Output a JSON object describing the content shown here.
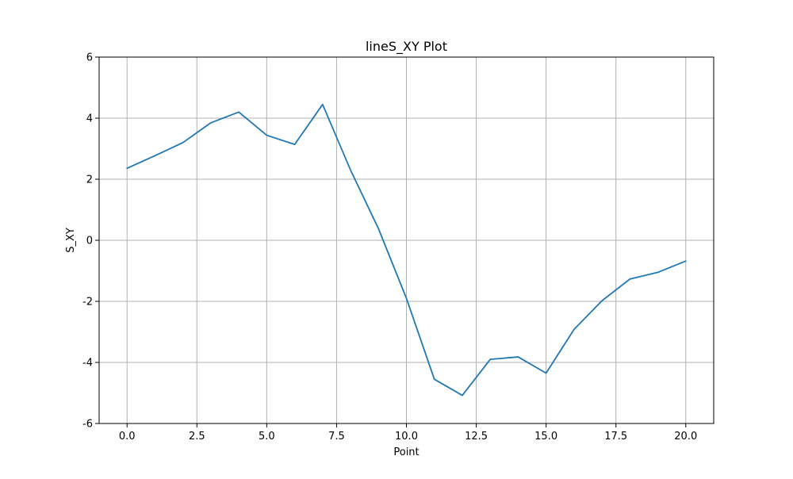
{
  "chart_data": {
    "type": "line",
    "title": "lineS_XY Plot",
    "xlabel": "Point",
    "ylabel": "S_XY",
    "xlim": [
      -1,
      21
    ],
    "ylim": [
      -6,
      6
    ],
    "grid": true,
    "x_ticks": [
      0,
      2.5,
      5,
      7.5,
      10,
      12.5,
      15,
      17.5,
      20
    ],
    "x_tick_labels": [
      "0.0",
      "2.5",
      "5.0",
      "7.5",
      "10.0",
      "12.5",
      "15.0",
      "17.5",
      "20.0"
    ],
    "y_ticks": [
      -6,
      -4,
      -2,
      0,
      2,
      4,
      6
    ],
    "y_tick_labels": [
      "-6",
      "-4",
      "-2",
      "0",
      "2",
      "4",
      "6"
    ],
    "series": [
      {
        "color": "#1f77b4",
        "x": [
          0,
          1,
          2,
          3,
          4,
          5,
          6,
          7,
          8,
          9,
          10,
          11,
          12,
          13,
          14,
          15,
          16,
          17,
          18,
          19,
          20
        ],
        "y": [
          2.36,
          2.77,
          3.2,
          3.85,
          4.2,
          3.44,
          3.14,
          4.45,
          2.3,
          0.38,
          -1.9,
          -4.55,
          -5.08,
          -3.9,
          -3.82,
          -4.35,
          -2.92,
          -1.98,
          -1.27,
          -1.05,
          -0.68
        ]
      }
    ]
  }
}
